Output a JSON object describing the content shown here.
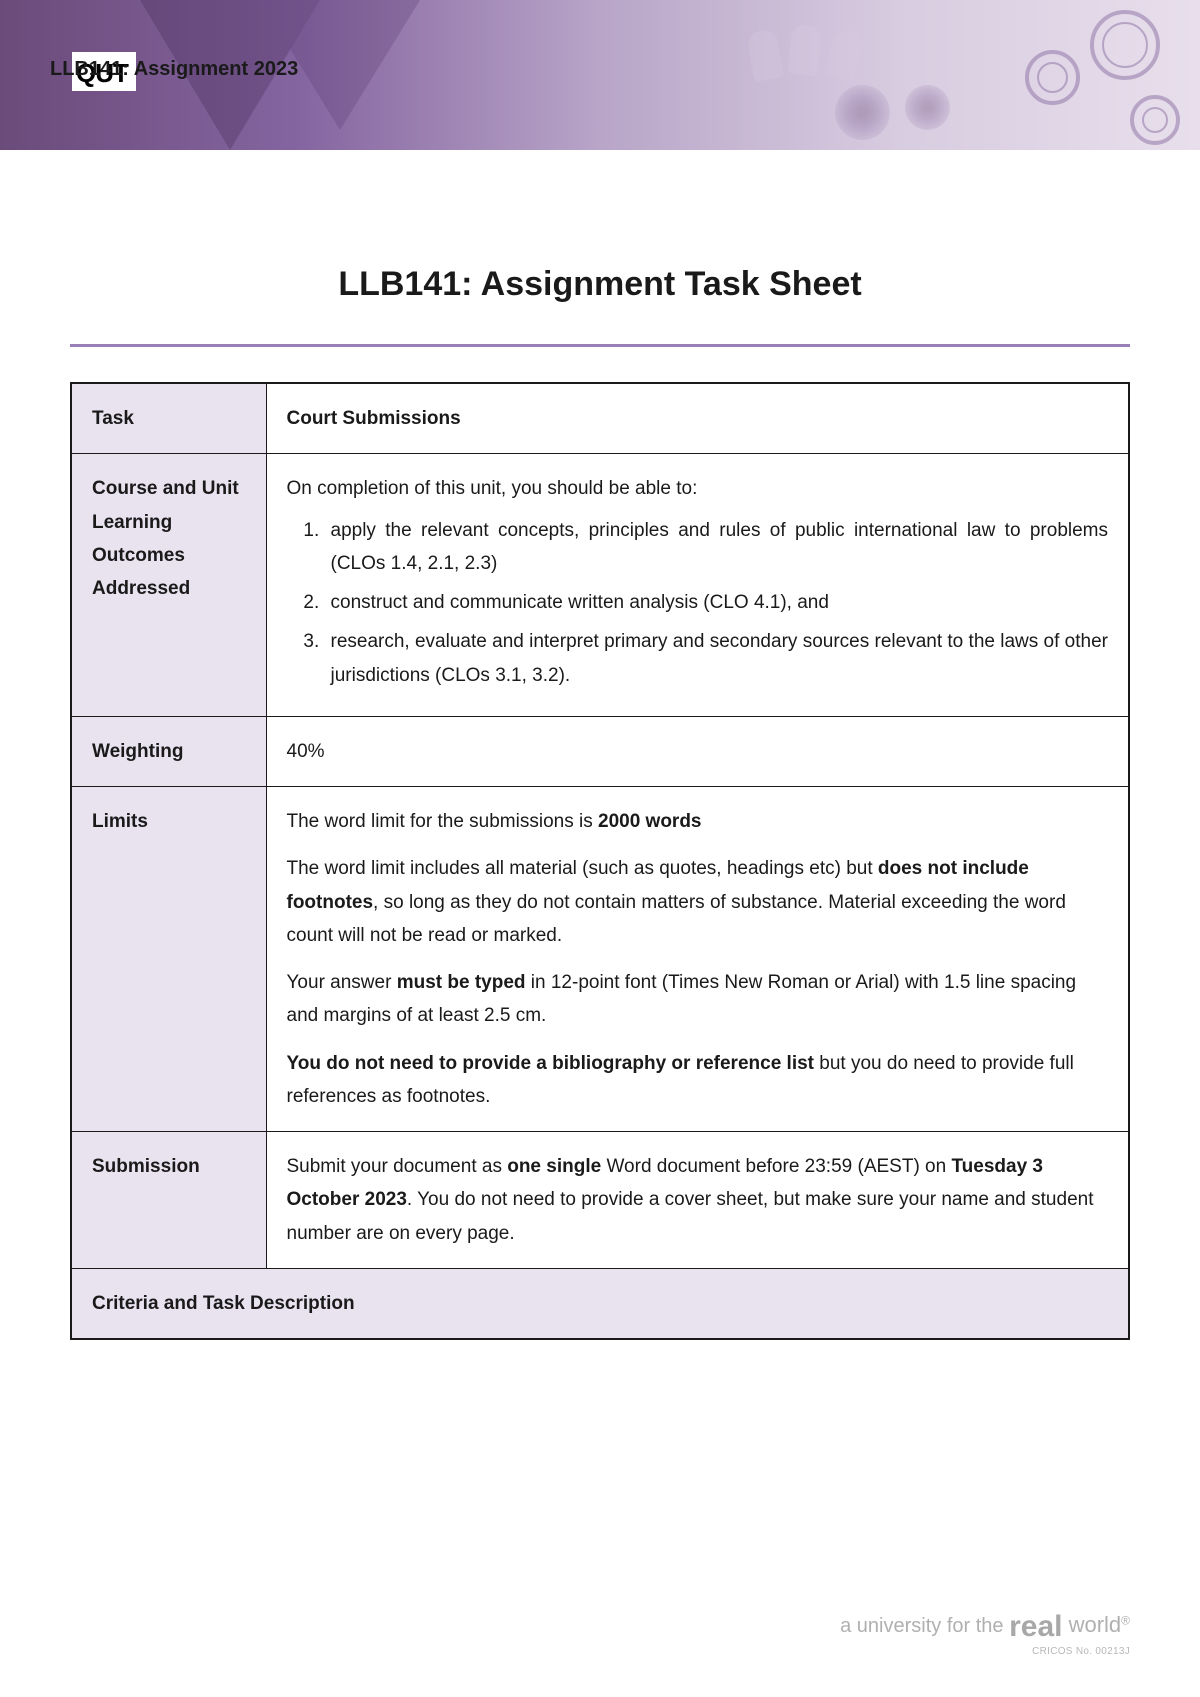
{
  "header": {
    "overlay_text": "LLB141: Assignment 2023",
    "logo_text": "QUT"
  },
  "title": "LLB141: Assignment Task Sheet",
  "table": {
    "rows": [
      {
        "label": "Task",
        "value_bold": "Court Submissions"
      },
      {
        "label": "Course and Unit Learning Outcomes Addressed",
        "intro": "On completion of this unit, you should be able to:",
        "items": [
          "apply the relevant concepts, principles and rules of public international law to problems (CLOs 1.4, 2.1, 2.3)",
          "construct and communicate written analysis (CLO 4.1), and",
          "research, evaluate and interpret primary and secondary sources relevant to the laws of other jurisdictions (CLOs 3.1, 3.2)."
        ]
      },
      {
        "label": "Weighting",
        "value": "40%"
      },
      {
        "label": "Limits",
        "limits_p1_a": "The word limit for the submissions is ",
        "limits_p1_b": "2000 words",
        "limits_p2_a": "The word limit includes all material (such as quotes, headings etc) but ",
        "limits_p2_b": "does not include footnotes",
        "limits_p2_c": ", so long as they do not contain matters of substance.  Material exceeding the word count will not be read or marked.",
        "limits_p3_a": "Your answer ",
        "limits_p3_b": "must be typed",
        "limits_p3_c": " in 12-point font (Times New Roman or Arial) with 1.5 line spacing and margins of at least 2.5 cm.",
        "limits_p4_a": "You do not need to provide a bibliography or reference list",
        "limits_p4_b": " but you do need to provide full references as footnotes."
      },
      {
        "label": "Submission",
        "sub_a": "Submit your document as ",
        "sub_b": "one single",
        "sub_c": " Word document before 23:59 (AEST) on ",
        "sub_d": "Tuesday 3 October 2023",
        "sub_e": ". You do not need to provide a cover sheet, but make sure your name and student number are on every page."
      }
    ],
    "criteria_label": "Criteria and Task Description"
  },
  "footer": {
    "tagline_pre": "a university for the ",
    "tagline_real": "real",
    "tagline_world": " world",
    "cricos": "CRICOS No. 00213J"
  },
  "colors": {
    "banner_dark": "#6b4b7a",
    "banner_light": "#e8dfec",
    "accent": "#9b7fb8",
    "label_bg": "#e9e3f0",
    "text": "#1a1a1a",
    "footer_grey": "#b0b0b0"
  }
}
